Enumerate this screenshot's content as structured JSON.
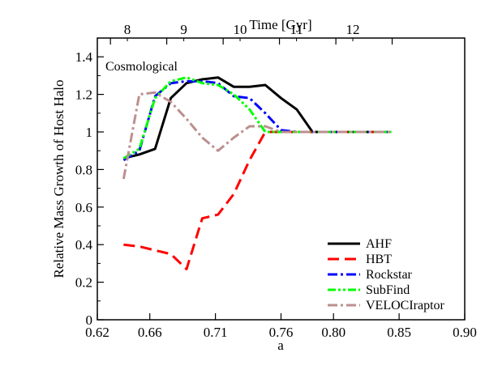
{
  "chart_data": {
    "type": "line",
    "xlabel": "a",
    "ylabel": "Relative Mass Growth of Host Halo",
    "top_axis_label": "Time [Gyr]",
    "annotation": "Cosmological",
    "xlim": [
      0.62,
      0.9
    ],
    "ylim": [
      0,
      1.5
    ],
    "x_ticks": [
      0.62,
      0.66,
      0.71,
      0.76,
      0.8,
      0.85,
      0.9
    ],
    "x_tick_labels": [
      "0.62",
      "0.66",
      "0.71",
      "0.76",
      "0.80",
      "0.85",
      "0.90"
    ],
    "y_ticks": [
      0,
      0.2,
      0.4,
      0.6,
      0.8,
      1.0,
      1.2,
      1.4
    ],
    "y_tick_labels": [
      "0",
      "0.2",
      "0.4",
      "0.6",
      "0.8",
      "1",
      "1.2",
      "1.4"
    ],
    "top_ticks_a": [
      0.63,
      0.6729,
      0.7159,
      0.7588,
      0.8018,
      0.8447
    ],
    "top_tick_labels": [
      "8",
      "9",
      "10",
      "11",
      "12"
    ],
    "top_tick_labels_a": [
      0.6429,
      0.6859,
      0.7288,
      0.7718,
      0.8147
    ],
    "grid": false,
    "legend_position": "bottom-right",
    "series": [
      {
        "name": "AHF",
        "color": "#000000",
        "dash": "solid",
        "x": [
          0.64,
          0.652,
          0.664,
          0.676,
          0.688,
          0.7,
          0.712,
          0.724,
          0.736,
          0.748,
          0.76,
          0.772,
          0.784,
          0.796,
          0.808,
          0.82,
          0.832,
          0.844
        ],
        "y": [
          0.86,
          0.88,
          0.91,
          1.18,
          1.26,
          1.28,
          1.29,
          1.24,
          1.24,
          1.25,
          1.18,
          1.12,
          1.0,
          1.0,
          1.0,
          1.0,
          1.0,
          1.0
        ]
      },
      {
        "name": "HBT",
        "color": "#ff0000",
        "dash": "long",
        "x": [
          0.64,
          0.652,
          0.664,
          0.676,
          0.688,
          0.7,
          0.712,
          0.724,
          0.736,
          0.748,
          0.76,
          0.772,
          0.784,
          0.796,
          0.808,
          0.82,
          0.832,
          0.844
        ],
        "y": [
          0.4,
          0.39,
          0.37,
          0.35,
          0.27,
          0.54,
          0.56,
          0.67,
          0.85,
          1.0,
          1.0,
          1.0,
          1.0,
          1.0,
          1.0,
          1.0,
          1.0,
          1.0
        ]
      },
      {
        "name": "Rockstar",
        "color": "#0000ff",
        "dash": "dashdot",
        "x": [
          0.64,
          0.652,
          0.664,
          0.676,
          0.688,
          0.7,
          0.712,
          0.724,
          0.736,
          0.748,
          0.76,
          0.772,
          0.784,
          0.796,
          0.808,
          0.82,
          0.832,
          0.844
        ],
        "y": [
          0.85,
          0.9,
          1.19,
          1.26,
          1.27,
          1.27,
          1.26,
          1.19,
          1.18,
          1.1,
          1.01,
          1.0,
          1.0,
          1.0,
          1.0,
          1.0,
          1.0,
          1.0
        ]
      },
      {
        "name": "SubFind",
        "color": "#00ff00",
        "dash": "dashdotdot",
        "x": [
          0.64,
          0.652,
          0.664,
          0.676,
          0.688,
          0.7,
          0.712,
          0.724,
          0.736,
          0.748,
          0.76,
          0.772,
          0.784,
          0.796,
          0.808,
          0.82,
          0.832,
          0.844
        ],
        "y": [
          0.86,
          0.91,
          1.18,
          1.27,
          1.29,
          1.26,
          1.25,
          1.2,
          1.12,
          1.0,
          1.0,
          1.0,
          1.0,
          1.0,
          1.0,
          1.0,
          1.0,
          1.0
        ]
      },
      {
        "name": "VELOCIraptor",
        "color": "#bc8f8f",
        "dash": "dashdot",
        "x": [
          0.64,
          0.652,
          0.664,
          0.676,
          0.688,
          0.7,
          0.712,
          0.724,
          0.736,
          0.748,
          0.76,
          0.772,
          0.784,
          0.796,
          0.808,
          0.82,
          0.832,
          0.844
        ],
        "y": [
          0.75,
          1.2,
          1.21,
          1.16,
          1.07,
          0.97,
          0.9,
          0.97,
          1.03,
          1.03,
          1.0,
          1.0,
          1.0,
          1.0,
          1.0,
          1.0,
          1.0,
          1.0
        ]
      }
    ]
  }
}
